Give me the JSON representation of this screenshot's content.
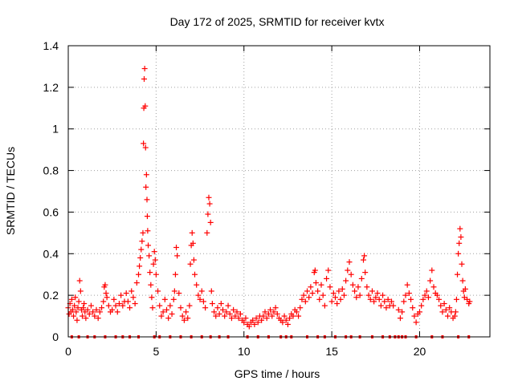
{
  "chart_data": {
    "type": "scatter",
    "title": "Day 172 of 2025, SRMTID for receiver kvtx",
    "xlabel": "GPS time / hours",
    "ylabel": "SRMTID / TECUs",
    "xlim": [
      0,
      24
    ],
    "ylim": [
      0,
      1.4
    ],
    "xticks": [
      0,
      5,
      10,
      15,
      20
    ],
    "xtick_labels": [
      "0",
      "5",
      "10",
      "15",
      "20"
    ],
    "yticks": [
      0,
      0.2,
      0.4,
      0.6,
      0.8,
      1,
      1.2,
      1.4
    ],
    "ytick_labels": [
      "0",
      "0.2",
      "0.4",
      "0.6",
      "0.8",
      "1",
      "1.2",
      "1.4"
    ],
    "grid": true,
    "marker": "+",
    "color": "#ff0000",
    "series": [
      {
        "name": "kvtx SRMTID",
        "points": [
          [
            0.0,
            0.14
          ],
          [
            0.05,
            0.11
          ],
          [
            0.1,
            0.16
          ],
          [
            0.15,
            0.12
          ],
          [
            0.2,
            0.18
          ],
          [
            0.25,
            0.13
          ],
          [
            0.3,
            0.1
          ],
          [
            0.35,
            0.15
          ],
          [
            0.4,
            0.19
          ],
          [
            0.45,
            0.12
          ],
          [
            0.5,
            0.08
          ],
          [
            0.55,
            0.14
          ],
          [
            0.6,
            0.17
          ],
          [
            0.65,
            0.27
          ],
          [
            0.7,
            0.22
          ],
          [
            0.75,
            0.13
          ],
          [
            0.8,
            0.1
          ],
          [
            0.85,
            0.14
          ],
          [
            0.9,
            0.16
          ],
          [
            0.95,
            0.12
          ],
          [
            1.0,
            0.09
          ],
          [
            1.1,
            0.13
          ],
          [
            1.2,
            0.11
          ],
          [
            1.3,
            0.15
          ],
          [
            1.4,
            0.12
          ],
          [
            1.5,
            0.1
          ],
          [
            1.6,
            0.13
          ],
          [
            1.7,
            0.09
          ],
          [
            1.8,
            0.12
          ],
          [
            1.9,
            0.14
          ],
          [
            2.0,
            0.17
          ],
          [
            2.05,
            0.24
          ],
          [
            2.1,
            0.25
          ],
          [
            2.15,
            0.21
          ],
          [
            2.2,
            0.19
          ],
          [
            2.3,
            0.15
          ],
          [
            2.4,
            0.12
          ],
          [
            2.5,
            0.13
          ],
          [
            2.6,
            0.18
          ],
          [
            2.7,
            0.15
          ],
          [
            2.8,
            0.12
          ],
          [
            2.9,
            0.16
          ],
          [
            3.0,
            0.2
          ],
          [
            3.1,
            0.15
          ],
          [
            3.2,
            0.17
          ],
          [
            3.3,
            0.21
          ],
          [
            3.4,
            0.17
          ],
          [
            3.5,
            0.14
          ],
          [
            3.6,
            0.22
          ],
          [
            3.7,
            0.19
          ],
          [
            3.8,
            0.16
          ],
          [
            3.9,
            0.26
          ],
          [
            4.0,
            0.3
          ],
          [
            4.05,
            0.34
          ],
          [
            4.1,
            0.38
          ],
          [
            4.15,
            0.42
          ],
          [
            4.2,
            0.46
          ],
          [
            4.25,
            0.5
          ],
          [
            4.28,
            0.93
          ],
          [
            4.3,
            1.1
          ],
          [
            4.32,
            1.24
          ],
          [
            4.35,
            1.29
          ],
          [
            4.38,
            1.11
          ],
          [
            4.4,
            0.91
          ],
          [
            4.42,
            0.72
          ],
          [
            4.45,
            0.78
          ],
          [
            4.48,
            0.66
          ],
          [
            4.5,
            0.58
          ],
          [
            4.52,
            0.51
          ],
          [
            4.55,
            0.44
          ],
          [
            4.6,
            0.39
          ],
          [
            4.65,
            0.31
          ],
          [
            4.7,
            0.25
          ],
          [
            4.75,
            0.19
          ],
          [
            4.8,
            0.14
          ],
          [
            4.85,
            0.35
          ],
          [
            4.9,
            0.41
          ],
          [
            4.95,
            0.37
          ],
          [
            5.0,
            0.3
          ],
          [
            5.1,
            0.22
          ],
          [
            5.2,
            0.15
          ],
          [
            5.3,
            0.1
          ],
          [
            5.4,
            0.12
          ],
          [
            5.5,
            0.18
          ],
          [
            5.6,
            0.13
          ],
          [
            5.7,
            0.09
          ],
          [
            5.8,
            0.15
          ],
          [
            5.9,
            0.11
          ],
          [
            6.0,
            0.18
          ],
          [
            6.05,
            0.22
          ],
          [
            6.1,
            0.3
          ],
          [
            6.15,
            0.43
          ],
          [
            6.2,
            0.39
          ],
          [
            6.3,
            0.21
          ],
          [
            6.4,
            0.14
          ],
          [
            6.5,
            0.1
          ],
          [
            6.6,
            0.08
          ],
          [
            6.7,
            0.12
          ],
          [
            6.8,
            0.09
          ],
          [
            6.9,
            0.15
          ],
          [
            6.95,
            0.35
          ],
          [
            7.0,
            0.44
          ],
          [
            7.05,
            0.5
          ],
          [
            7.1,
            0.45
          ],
          [
            7.15,
            0.37
          ],
          [
            7.2,
            0.3
          ],
          [
            7.3,
            0.25
          ],
          [
            7.4,
            0.2
          ],
          [
            7.5,
            0.18
          ],
          [
            7.6,
            0.22
          ],
          [
            7.7,
            0.17
          ],
          [
            7.8,
            0.14
          ],
          [
            7.9,
            0.5
          ],
          [
            7.95,
            0.59
          ],
          [
            8.0,
            0.67
          ],
          [
            8.05,
            0.64
          ],
          [
            8.1,
            0.55
          ],
          [
            8.15,
            0.22
          ],
          [
            8.2,
            0.16
          ],
          [
            8.3,
            0.12
          ],
          [
            8.4,
            0.1
          ],
          [
            8.5,
            0.14
          ],
          [
            8.6,
            0.11
          ],
          [
            8.7,
            0.16
          ],
          [
            8.8,
            0.13
          ],
          [
            8.9,
            0.1
          ],
          [
            9.0,
            0.12
          ],
          [
            9.1,
            0.15
          ],
          [
            9.2,
            0.11
          ],
          [
            9.3,
            0.09
          ],
          [
            9.4,
            0.13
          ],
          [
            9.5,
            0.1
          ],
          [
            9.6,
            0.12
          ],
          [
            9.7,
            0.09
          ],
          [
            9.8,
            0.11
          ],
          [
            9.9,
            0.08
          ],
          [
            10.0,
            0.07
          ],
          [
            10.1,
            0.09
          ],
          [
            10.2,
            0.06
          ],
          [
            10.3,
            0.05
          ],
          [
            10.4,
            0.07
          ],
          [
            10.5,
            0.08
          ],
          [
            10.6,
            0.06
          ],
          [
            10.7,
            0.09
          ],
          [
            10.8,
            0.07
          ],
          [
            10.9,
            0.1
          ],
          [
            11.0,
            0.08
          ],
          [
            11.1,
            0.1
          ],
          [
            11.2,
            0.12
          ],
          [
            11.3,
            0.09
          ],
          [
            11.4,
            0.11
          ],
          [
            11.5,
            0.13
          ],
          [
            11.6,
            0.1
          ],
          [
            11.7,
            0.12
          ],
          [
            11.8,
            0.14
          ],
          [
            11.9,
            0.11
          ],
          [
            12.0,
            0.09
          ],
          [
            12.1,
            0.08
          ],
          [
            12.2,
            0.07
          ],
          [
            12.3,
            0.1
          ],
          [
            12.4,
            0.08
          ],
          [
            12.5,
            0.06
          ],
          [
            12.6,
            0.09
          ],
          [
            12.7,
            0.11
          ],
          [
            12.8,
            0.1
          ],
          [
            12.9,
            0.13
          ],
          [
            13.0,
            0.12
          ],
          [
            13.1,
            0.1
          ],
          [
            13.2,
            0.14
          ],
          [
            13.3,
            0.18
          ],
          [
            13.4,
            0.2
          ],
          [
            13.5,
            0.17
          ],
          [
            13.6,
            0.22
          ],
          [
            13.7,
            0.19
          ],
          [
            13.8,
            0.24
          ],
          [
            13.9,
            0.21
          ],
          [
            14.0,
            0.31
          ],
          [
            14.05,
            0.32
          ],
          [
            14.1,
            0.26
          ],
          [
            14.2,
            0.22
          ],
          [
            14.3,
            0.18
          ],
          [
            14.4,
            0.25
          ],
          [
            14.5,
            0.2
          ],
          [
            14.6,
            0.15
          ],
          [
            14.7,
            0.28
          ],
          [
            14.8,
            0.32
          ],
          [
            14.9,
            0.24
          ],
          [
            15.0,
            0.17
          ],
          [
            15.1,
            0.21
          ],
          [
            15.2,
            0.19
          ],
          [
            15.3,
            0.16
          ],
          [
            15.4,
            0.22
          ],
          [
            15.5,
            0.18
          ],
          [
            15.6,
            0.23
          ],
          [
            15.7,
            0.2
          ],
          [
            15.8,
            0.27
          ],
          [
            15.9,
            0.32
          ],
          [
            16.0,
            0.36
          ],
          [
            16.1,
            0.3
          ],
          [
            16.2,
            0.25
          ],
          [
            16.3,
            0.22
          ],
          [
            16.4,
            0.19
          ],
          [
            16.5,
            0.24
          ],
          [
            16.6,
            0.2
          ],
          [
            16.7,
            0.28
          ],
          [
            16.8,
            0.37
          ],
          [
            16.85,
            0.39
          ],
          [
            16.9,
            0.31
          ],
          [
            17.0,
            0.24
          ],
          [
            17.1,
            0.2
          ],
          [
            17.2,
            0.18
          ],
          [
            17.3,
            0.22
          ],
          [
            17.4,
            0.17
          ],
          [
            17.5,
            0.19
          ],
          [
            17.6,
            0.21
          ],
          [
            17.7,
            0.18
          ],
          [
            17.8,
            0.15
          ],
          [
            17.9,
            0.2
          ],
          [
            18.0,
            0.17
          ],
          [
            18.1,
            0.14
          ],
          [
            18.2,
            0.18
          ],
          [
            18.3,
            0.15
          ],
          [
            18.4,
            0.17
          ],
          [
            18.5,
            0.15
          ],
          [
            18.8,
            0.13
          ],
          [
            18.9,
            0.09
          ],
          [
            19.0,
            0.12
          ],
          [
            19.1,
            0.17
          ],
          [
            19.2,
            0.2
          ],
          [
            19.3,
            0.25
          ],
          [
            19.4,
            0.21
          ],
          [
            19.5,
            0.18
          ],
          [
            19.6,
            0.14
          ],
          [
            19.7,
            0.1
          ],
          [
            19.8,
            0.07
          ],
          [
            19.9,
            0.11
          ],
          [
            20.0,
            0.12
          ],
          [
            20.1,
            0.15
          ],
          [
            20.2,
            0.18
          ],
          [
            20.3,
            0.2
          ],
          [
            20.4,
            0.22
          ],
          [
            20.5,
            0.19
          ],
          [
            20.6,
            0.27
          ],
          [
            20.7,
            0.32
          ],
          [
            20.8,
            0.24
          ],
          [
            20.9,
            0.21
          ],
          [
            21.0,
            0.2
          ],
          [
            21.1,
            0.18
          ],
          [
            21.2,
            0.15
          ],
          [
            21.3,
            0.12
          ],
          [
            21.4,
            0.16
          ],
          [
            21.5,
            0.13
          ],
          [
            21.6,
            0.1
          ],
          [
            21.7,
            0.14
          ],
          [
            21.8,
            0.12
          ],
          [
            21.9,
            0.09
          ],
          [
            22.0,
            0.1
          ],
          [
            22.05,
            0.12
          ],
          [
            22.1,
            0.18
          ],
          [
            22.15,
            0.3
          ],
          [
            22.2,
            0.4
          ],
          [
            22.25,
            0.45
          ],
          [
            22.3,
            0.52
          ],
          [
            22.35,
            0.48
          ],
          [
            22.4,
            0.35
          ],
          [
            22.45,
            0.27
          ],
          [
            22.5,
            0.22
          ],
          [
            22.55,
            0.19
          ],
          [
            22.6,
            0.23
          ],
          [
            22.7,
            0.18
          ],
          [
            22.8,
            0.16
          ],
          [
            22.85,
            0.17
          ]
        ]
      }
    ],
    "baseline_markers_x": [
      0.2,
      0.6,
      1.1,
      1.5,
      2.1,
      2.7,
      3.1,
      3.5,
      4.0,
      4.9,
      5.2,
      5.8,
      6.4,
      7.0,
      7.6,
      8.1,
      8.6,
      9.1,
      10.2,
      10.8,
      11.4,
      12.1,
      12.4,
      12.7,
      13.6,
      14.2,
      14.6,
      15.2,
      15.8,
      16.1,
      16.6,
      17.3,
      17.9,
      18.3,
      18.6,
      18.8,
      19.0,
      19.2,
      19.8,
      20.7,
      21.3,
      22.2,
      22.8
    ]
  }
}
